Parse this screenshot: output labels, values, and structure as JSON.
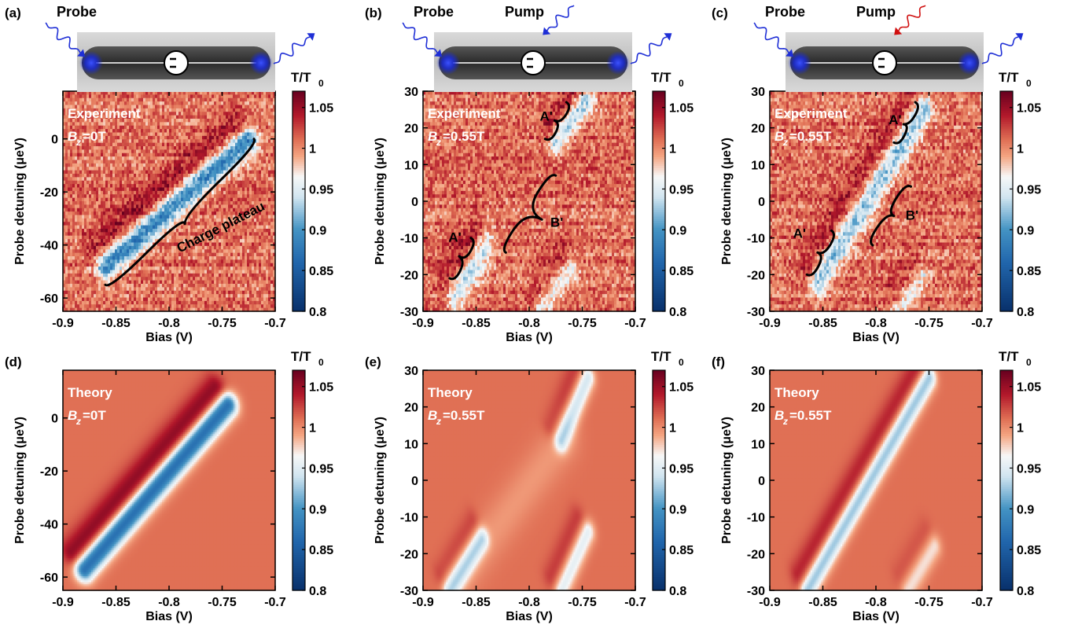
{
  "colors": {
    "low": "#08306b",
    "mid_low": "#4393c3",
    "neutral": "#f7f7f7",
    "background": "#e07055",
    "high": "#67001f",
    "probe_arrow": "#1f2fd6",
    "pump_arrow_b": "#1f2fd6",
    "pump_arrow_c": "#d01010"
  },
  "colorbar": {
    "title_main": "T/T",
    "title_sub": "0",
    "ticks": [
      "1.05",
      "1",
      "0.95",
      "0.9",
      "0.85",
      "0.8"
    ],
    "tick_values": [
      1.05,
      1.0,
      0.95,
      0.9,
      0.85,
      0.8
    ],
    "range": [
      0.8,
      1.07
    ]
  },
  "axes": {
    "xlabel": "Bias (V)",
    "ylabel": "Probe detuning (μeV)",
    "x_ticks": [
      "-0.9",
      "-0.85",
      "-0.8",
      "-0.75",
      "-0.7"
    ],
    "x_tick_values": [
      -0.9,
      -0.85,
      -0.8,
      -0.75,
      -0.7
    ]
  },
  "schematic": {
    "probe_label": "Probe",
    "pump_label": "Pump"
  },
  "chart_data": [
    {
      "id": "a",
      "panel_label": "(a)",
      "type": "heatmap",
      "kind": "experiment",
      "legend_line1": "Experiment",
      "field_value": "=0T",
      "xlim": [
        -0.9,
        -0.7
      ],
      "ylim": [
        -65,
        18
      ],
      "y_ticks": [
        "0",
        "-20",
        "-40",
        "-60"
      ],
      "y_tick_values": [
        0,
        -20,
        -40,
        -60
      ],
      "pump": "none",
      "features": [
        {
          "x": [
            -0.86,
            -0.725
          ],
          "y": [
            -48,
            0
          ],
          "width": 3.5,
          "depth": 0.13,
          "gain": 0.04
        }
      ],
      "annotations": [
        {
          "text": "Charge plateau",
          "x": -0.79,
          "y": -43,
          "angle": -27
        }
      ],
      "braces": [
        {
          "from": [
            -0.86,
            -55
          ],
          "to": [
            -0.72,
            0
          ],
          "tip": [
            -0.785,
            -32
          ],
          "side": 1
        }
      ]
    },
    {
      "id": "b",
      "panel_label": "(b)",
      "type": "heatmap",
      "kind": "experiment",
      "legend_line1": "Experiment",
      "field_value": "=0.55T",
      "xlim": [
        -0.9,
        -0.7
      ],
      "ylim": [
        -30,
        30
      ],
      "y_ticks": [
        "30",
        "20",
        "10",
        "0",
        "-10",
        "-20",
        "-30"
      ],
      "y_tick_values": [
        30,
        20,
        10,
        0,
        -10,
        -20,
        -30
      ],
      "pump": "blue",
      "features": [
        {
          "x": [
            -0.87,
            -0.84
          ],
          "y": [
            -26,
            -12
          ],
          "width": 3,
          "depth": 0.07,
          "gain": 0.03
        },
        {
          "x": [
            -0.775,
            -0.745
          ],
          "y": [
            16,
            28
          ],
          "width": 2.5,
          "depth": 0.08,
          "gain": 0.03
        },
        {
          "x": [
            -0.79,
            -0.76
          ],
          "y": [
            -30,
            -18
          ],
          "width": 2.5,
          "depth": 0.05,
          "gain": 0.02
        }
      ],
      "annotations": [
        {
          "text": "A'",
          "x": -0.876,
          "y": -11,
          "angle": 0
        },
        {
          "text": "A'",
          "x": -0.79,
          "y": 22,
          "angle": 0
        },
        {
          "text": "B'",
          "x": -0.78,
          "y": -7,
          "angle": 0
        }
      ],
      "braces": [
        {
          "from": [
            -0.875,
            -21
          ],
          "to": [
            -0.855,
            -10
          ],
          "tip": [
            -0.866,
            -15
          ],
          "side": 1
        },
        {
          "from": [
            -0.785,
            17
          ],
          "to": [
            -0.765,
            27
          ],
          "tip": [
            -0.776,
            22
          ],
          "side": 1
        },
        {
          "from": [
            -0.822,
            -14
          ],
          "to": [
            -0.775,
            7
          ],
          "tip": [
            -0.788,
            -5
          ],
          "side": -1
        }
      ]
    },
    {
      "id": "c",
      "panel_label": "(c)",
      "type": "heatmap",
      "kind": "experiment",
      "legend_line1": "Experiment",
      "field_value": "=0.55T",
      "xlim": [
        -0.9,
        -0.7
      ],
      "ylim": [
        -30,
        30
      ],
      "y_ticks": [
        "30",
        "20",
        "10",
        "0",
        "-10",
        "-20",
        "-30"
      ],
      "y_tick_values": [
        30,
        20,
        10,
        0,
        -10,
        -20,
        -30
      ],
      "pump": "red",
      "features": [
        {
          "x": [
            -0.855,
            -0.755
          ],
          "y": [
            -22,
            25
          ],
          "width": 3,
          "depth": 0.09,
          "gain": 0.03
        },
        {
          "x": [
            -0.78,
            -0.755
          ],
          "y": [
            -30,
            -20
          ],
          "width": 2.5,
          "depth": 0.05,
          "gain": 0.02
        }
      ],
      "annotations": [
        {
          "text": "A'",
          "x": -0.878,
          "y": -10,
          "angle": 0
        },
        {
          "text": "A'",
          "x": -0.788,
          "y": 21,
          "angle": 0
        },
        {
          "text": "B'",
          "x": -0.772,
          "y": -5,
          "angle": 0
        }
      ],
      "braces": [
        {
          "from": [
            -0.865,
            -20
          ],
          "to": [
            -0.842,
            -8
          ],
          "tip": [
            -0.855,
            -14
          ],
          "side": 1
        },
        {
          "from": [
            -0.783,
            16
          ],
          "to": [
            -0.763,
            27
          ],
          "tip": [
            -0.774,
            21
          ],
          "side": 1
        },
        {
          "from": [
            -0.803,
            -12
          ],
          "to": [
            -0.767,
            4
          ],
          "tip": [
            -0.783,
            -4
          ],
          "side": -1
        }
      ]
    },
    {
      "id": "d",
      "panel_label": "(d)",
      "type": "heatmap",
      "kind": "theory",
      "legend_line1": "Theory",
      "field_value": "=0T",
      "xlim": [
        -0.9,
        -0.7
      ],
      "ylim": [
        -65,
        18
      ],
      "y_ticks": [
        "0",
        "-20",
        "-40",
        "-60"
      ],
      "y_tick_values": [
        0,
        -20,
        -40,
        -60
      ],
      "features": [
        {
          "x": [
            -0.88,
            -0.745
          ],
          "y": [
            -57,
            5
          ],
          "width": 3.5,
          "depth": 0.15,
          "gain": 0.05
        }
      ],
      "annotations": [],
      "braces": []
    },
    {
      "id": "e",
      "panel_label": "(e)",
      "type": "heatmap",
      "kind": "theory",
      "legend_line1": "Theory",
      "field_value": "=0.55T",
      "xlim": [
        -0.9,
        -0.7
      ],
      "ylim": [
        -30,
        30
      ],
      "y_ticks": [
        "30",
        "20",
        "10",
        "0",
        "-10",
        "-20",
        "-30"
      ],
      "y_tick_values": [
        30,
        20,
        10,
        0,
        -10,
        -20,
        -30
      ],
      "features": [
        {
          "x": [
            -0.875,
            -0.845
          ],
          "y": [
            -30,
            -16
          ],
          "width": 2.5,
          "depth": 0.07,
          "gain": 0.02
        },
        {
          "x": [
            -0.77,
            -0.745
          ],
          "y": [
            11,
            28
          ],
          "width": 2.5,
          "depth": 0.07,
          "gain": 0.02
        },
        {
          "x": [
            -0.77,
            -0.745
          ],
          "y": [
            -30,
            -14
          ],
          "width": 2.5,
          "depth": 0.06,
          "gain": 0.02
        },
        {
          "x": [
            -0.87,
            -0.765
          ],
          "y": [
            -28,
            12
          ],
          "width": 5,
          "depth": 0.015,
          "gain": 0.0
        }
      ],
      "annotations": [],
      "braces": []
    },
    {
      "id": "f",
      "panel_label": "(f)",
      "type": "heatmap",
      "kind": "theory",
      "legend_line1": "Theory",
      "field_value": "=0.55T",
      "xlim": [
        -0.9,
        -0.7
      ],
      "ylim": [
        -30,
        30
      ],
      "y_ticks": [
        "30",
        "20",
        "10",
        "0",
        "-10",
        "-20",
        "-30"
      ],
      "y_tick_values": [
        30,
        20,
        10,
        0,
        -10,
        -20,
        -30
      ],
      "features": [
        {
          "x": [
            -0.865,
            -0.75
          ],
          "y": [
            -30,
            28
          ],
          "width": 2.5,
          "depth": 0.09,
          "gain": 0.03
        },
        {
          "x": [
            -0.77,
            -0.745
          ],
          "y": [
            -30,
            -18
          ],
          "width": 2.5,
          "depth": 0.04,
          "gain": 0.01
        }
      ],
      "annotations": [],
      "braces": []
    }
  ]
}
